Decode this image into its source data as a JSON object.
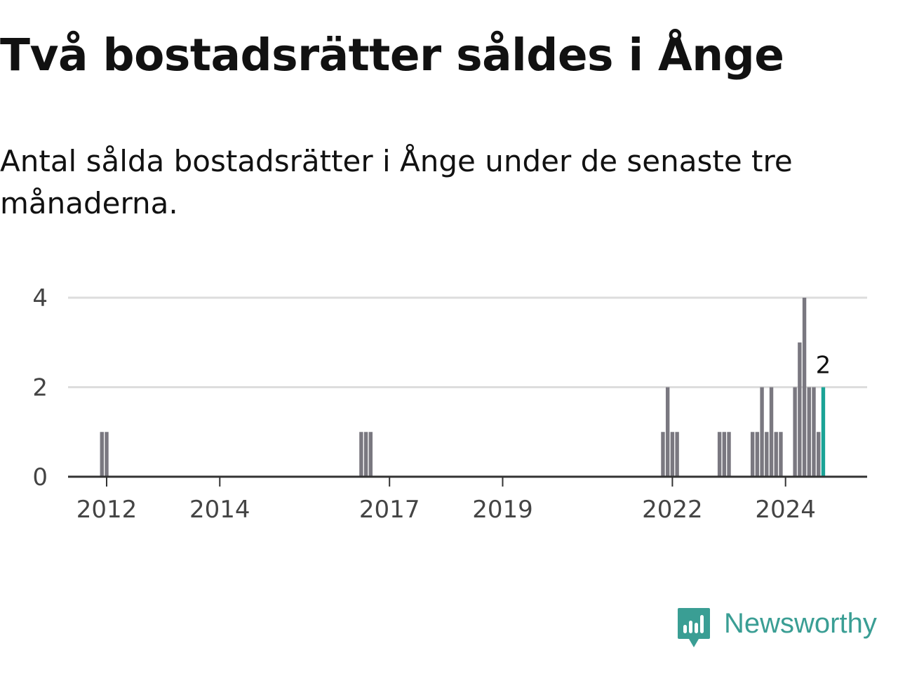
{
  "title": "Två bostadsrätter såldes i Ånge",
  "subtitle": "Antal sålda bostadsrätter i Ånge under de senaste tre månaderna.",
  "logo": {
    "text": "Newsworthy",
    "icon": "newsworthy-logo-icon",
    "color": "#3a9e94"
  },
  "chart_data": {
    "type": "bar",
    "title": "Två bostadsrätter såldes i Ånge",
    "xlabel": "",
    "ylabel": "",
    "ylim": [
      0,
      4
    ],
    "y_ticks": [
      0,
      2,
      4
    ],
    "x_ticks": [
      "2012",
      "2014",
      "2017",
      "2019",
      "2022",
      "2024"
    ],
    "grid": true,
    "bar_color": "#7a7880",
    "highlight_color": "#1aa396",
    "annotation": "2",
    "series": [
      {
        "values": [
          {
            "x": "2011-12",
            "y": 1
          },
          {
            "x": "2012-01",
            "y": 1
          },
          {
            "x": "2016-07",
            "y": 1
          },
          {
            "x": "2016-08",
            "y": 1
          },
          {
            "x": "2016-09",
            "y": 1
          },
          {
            "x": "2021-11",
            "y": 1
          },
          {
            "x": "2021-12",
            "y": 2
          },
          {
            "x": "2022-01",
            "y": 1
          },
          {
            "x": "2022-02",
            "y": 1
          },
          {
            "x": "2022-11",
            "y": 1
          },
          {
            "x": "2022-12",
            "y": 1
          },
          {
            "x": "2023-01",
            "y": 1
          },
          {
            "x": "2023-06",
            "y": 1
          },
          {
            "x": "2023-07",
            "y": 1
          },
          {
            "x": "2023-08",
            "y": 2
          },
          {
            "x": "2023-09",
            "y": 1
          },
          {
            "x": "2023-10",
            "y": 2
          },
          {
            "x": "2023-11",
            "y": 1
          },
          {
            "x": "2023-12",
            "y": 1
          },
          {
            "x": "2024-03",
            "y": 2
          },
          {
            "x": "2024-04",
            "y": 3
          },
          {
            "x": "2024-05",
            "y": 4
          },
          {
            "x": "2024-06",
            "y": 2
          },
          {
            "x": "2024-07",
            "y": 2
          },
          {
            "x": "2024-08",
            "y": 1
          },
          {
            "x": "2024-09",
            "y": 2,
            "highlight": true
          }
        ]
      }
    ]
  }
}
